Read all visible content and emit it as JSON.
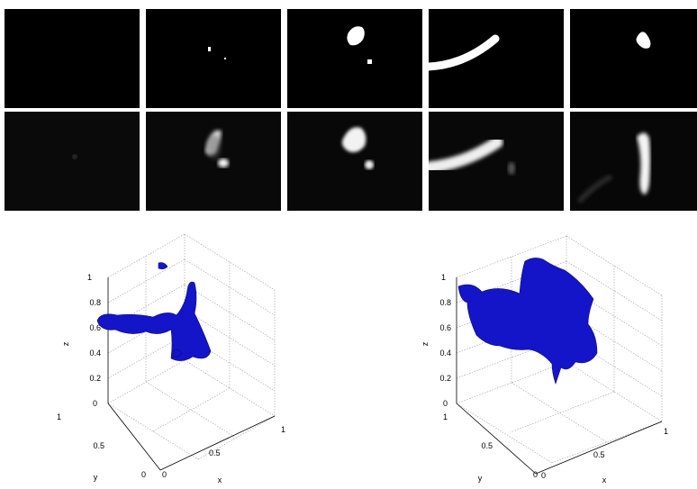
{
  "figure": {
    "binary_row": [
      {
        "panel": 1
      },
      {
        "panel": 2
      },
      {
        "panel": 3
      },
      {
        "panel": 4
      },
      {
        "panel": 5
      }
    ],
    "gray_row": [
      {
        "panel": 1
      },
      {
        "panel": 2
      },
      {
        "panel": 3
      },
      {
        "panel": 4
      },
      {
        "panel": 5
      }
    ],
    "surface_color": "#1414c8",
    "plots": [
      {
        "xlabel": "x",
        "ylabel": "y",
        "zlabel": "z",
        "x_ticks": [
          "0",
          "0.5",
          "1"
        ],
        "y_ticks": [
          "0",
          "0.5",
          "1"
        ],
        "z_ticks": [
          "0",
          "0.2",
          "0.4",
          "0.6",
          "0.8",
          "1"
        ]
      },
      {
        "xlabel": "x",
        "ylabel": "y",
        "zlabel": "z",
        "x_ticks": [
          "0",
          "0.5",
          "1"
        ],
        "y_ticks": [
          "0",
          "0.5",
          "1"
        ],
        "z_ticks": [
          "0",
          "0.2",
          "0.4",
          "0.6",
          "0.8",
          "1"
        ]
      }
    ]
  }
}
